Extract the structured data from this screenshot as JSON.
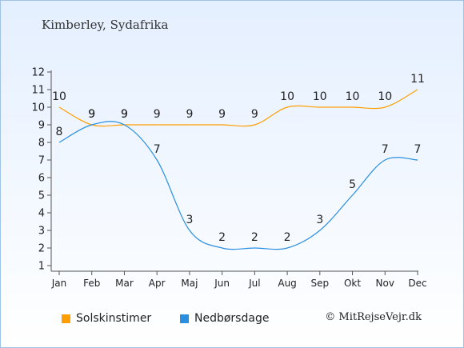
{
  "title": "Kimberley, Sydafrika",
  "copyright": "© MitRejseVejr.dk",
  "colors": {
    "sun": "#ff9e00",
    "rain": "#2a8fe0",
    "axis": "#555555",
    "text": "#222222"
  },
  "chart_data": {
    "type": "line",
    "title": "Kimberley, Sydafrika",
    "categories": [
      "Jan",
      "Feb",
      "Mar",
      "Apr",
      "Maj",
      "Jun",
      "Jul",
      "Aug",
      "Sep",
      "Okt",
      "Nov",
      "Dec"
    ],
    "y_ticks": [
      1,
      2,
      3,
      4,
      5,
      6,
      7,
      8,
      9,
      10,
      11,
      12
    ],
    "ylim": [
      1,
      12
    ],
    "grid": false,
    "legend_position": "bottom-left",
    "series": [
      {
        "name": "Solskinstimer",
        "color": "#ff9e00",
        "values": [
          10,
          9,
          9,
          9,
          9,
          9,
          9,
          10,
          10,
          10,
          10,
          11
        ]
      },
      {
        "name": "Nedbørsdage",
        "color": "#2a8fe0",
        "values": [
          8,
          9,
          9,
          7,
          3,
          2,
          2,
          2,
          3,
          5,
          7,
          7
        ]
      }
    ]
  }
}
